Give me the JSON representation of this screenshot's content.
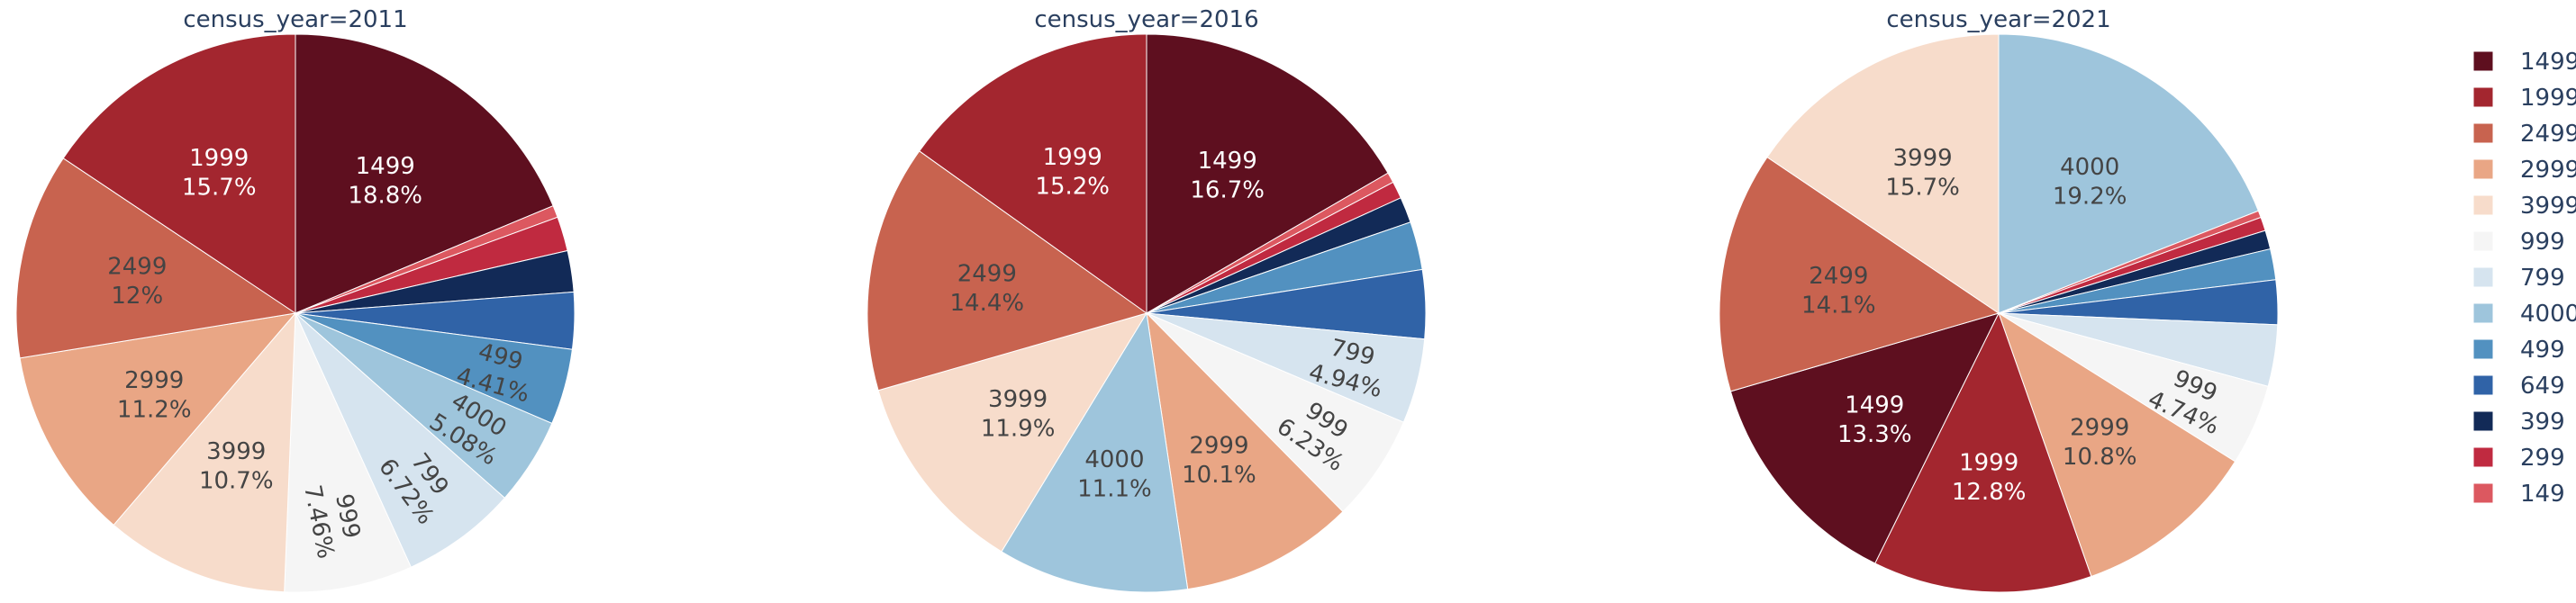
{
  "chart_data": {
    "type": "pie",
    "legend_position": "right",
    "categories": [
      "1499",
      "1999",
      "2499",
      "2999",
      "3999",
      "999",
      "799",
      "4000",
      "499",
      "649",
      "399",
      "299",
      "149"
    ],
    "colors": {
      "1499": "#5e0f1f",
      "1999": "#a3262f",
      "2499": "#c8634f",
      "2999": "#e9a685",
      "3999": "#f7dccb",
      "999": "#f5f5f5",
      "799": "#d6e4ef",
      "4000": "#9ec5dc",
      "499": "#5291c0",
      "649": "#3063a7",
      "399": "#122a57",
      "299": "#c02a40",
      "149": "#dc5860"
    },
    "charts": [
      {
        "title": "census_year=2011",
        "slices": [
          {
            "label": "1499",
            "value": 18.8,
            "text": "18.8%"
          },
          {
            "label": "149",
            "value": 0.7,
            "text": ""
          },
          {
            "label": "299",
            "value": 2.0,
            "text": ""
          },
          {
            "label": "399",
            "value": 2.4,
            "text": ""
          },
          {
            "label": "649",
            "value": 3.3,
            "text": ""
          },
          {
            "label": "499",
            "value": 4.41,
            "text": "4.41%"
          },
          {
            "label": "4000",
            "value": 5.08,
            "text": "5.08%"
          },
          {
            "label": "799",
            "value": 6.72,
            "text": "6.72%"
          },
          {
            "label": "999",
            "value": 7.46,
            "text": "7.46%"
          },
          {
            "label": "3999",
            "value": 10.7,
            "text": "10.7%"
          },
          {
            "label": "2999",
            "value": 11.2,
            "text": "11.2%"
          },
          {
            "label": "2499",
            "value": 12.0,
            "text": "12%"
          },
          {
            "label": "1999",
            "value": 15.7,
            "text": "15.7%"
          }
        ]
      },
      {
        "title": "census_year=2016",
        "slices": [
          {
            "label": "1499",
            "value": 16.7,
            "text": "16.7%"
          },
          {
            "label": "149",
            "value": 0.6,
            "text": ""
          },
          {
            "label": "299",
            "value": 1.0,
            "text": ""
          },
          {
            "label": "399",
            "value": 1.5,
            "text": ""
          },
          {
            "label": "499",
            "value": 2.8,
            "text": ""
          },
          {
            "label": "649",
            "value": 4.0,
            "text": ""
          },
          {
            "label": "799",
            "value": 4.94,
            "text": "4.94%"
          },
          {
            "label": "999",
            "value": 6.23,
            "text": "6.23%"
          },
          {
            "label": "2999",
            "value": 10.1,
            "text": "10.1%"
          },
          {
            "label": "4000",
            "value": 11.1,
            "text": "11.1%"
          },
          {
            "label": "3999",
            "value": 11.9,
            "text": "11.9%"
          },
          {
            "label": "2499",
            "value": 14.4,
            "text": "14.4%"
          },
          {
            "label": "1999",
            "value": 15.2,
            "text": "15.2%"
          }
        ]
      },
      {
        "title": "census_year=2021",
        "slices": [
          {
            "label": "4000",
            "value": 19.2,
            "text": "19.2%"
          },
          {
            "label": "149",
            "value": 0.4,
            "text": ""
          },
          {
            "label": "299",
            "value": 0.8,
            "text": ""
          },
          {
            "label": "399",
            "value": 1.1,
            "text": ""
          },
          {
            "label": "499",
            "value": 1.8,
            "text": ""
          },
          {
            "label": "649",
            "value": 2.6,
            "text": ""
          },
          {
            "label": "799",
            "value": 3.6,
            "text": ""
          },
          {
            "label": "999",
            "value": 4.74,
            "text": "4.74%"
          },
          {
            "label": "2999",
            "value": 10.8,
            "text": "10.8%"
          },
          {
            "label": "1999",
            "value": 12.8,
            "text": "12.8%"
          },
          {
            "label": "1499",
            "value": 13.3,
            "text": "13.3%"
          },
          {
            "label": "2499",
            "value": 14.1,
            "text": "14.1%"
          },
          {
            "label": "3999",
            "value": 15.7,
            "text": "15.7%"
          }
        ]
      }
    ]
  }
}
